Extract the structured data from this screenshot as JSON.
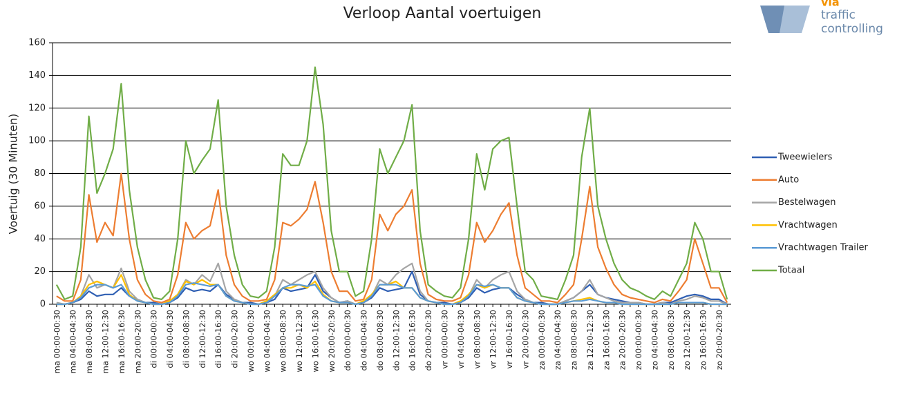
{
  "logo": {
    "line1": "via",
    "line2": "traffic",
    "line3": "controlling"
  },
  "chart_data": {
    "type": "line",
    "title": "Verloop Aantal voertuigen",
    "y_label": "Voertuig (30 Minuten)",
    "ylim": [
      0,
      160
    ],
    "yticks": [
      0,
      20,
      40,
      60,
      80,
      100,
      120,
      140,
      160
    ],
    "grid": true,
    "legend": "right",
    "categories": [
      "ma 00:00-00:30",
      null,
      "ma 04:00-04:30",
      null,
      "ma 08:00-08:30",
      null,
      "ma 12:00-12:30",
      null,
      "ma 16:00-16:30",
      null,
      "ma 20:00-20:30",
      null,
      "di 00:00-00:30",
      null,
      "di 04:00-04:30",
      null,
      "di 08:00-08:30",
      null,
      "di 12:00-12:30",
      null,
      "di 16:00-16:30",
      null,
      "di 20:00-20:30",
      null,
      "wo 00:00-00:30",
      null,
      "wo 04:00-04:30",
      null,
      "wo 08:00-08:30",
      null,
      "wo 12:00-12:30",
      null,
      "wo 16:00-16:30",
      null,
      "wo 20:00-20:30",
      null,
      "do 00:00-00:30",
      null,
      "do 04:00-04:30",
      null,
      "do 08:00-08:30",
      null,
      "do 12:00-12:30",
      null,
      "do 16:00-16:30",
      null,
      "do 20:00-20:30",
      null,
      "vr 00:00-00:30",
      null,
      "vr 04:00-04:30",
      null,
      "vr 08:00-08:30",
      null,
      "vr 12:00-12:30",
      null,
      "vr 16:00-16:30",
      null,
      "vr 20:00-20:30",
      null,
      "za 00:00-00:30",
      null,
      "za 04:00-04:30",
      null,
      "za 08:00-08:30",
      null,
      "za 12:00-12:30",
      null,
      "za 16:00-16:30",
      null,
      "za 20:00-20:30",
      null,
      "zo 00:00-00:30",
      null,
      "zo 04:00-04:30",
      null,
      "zo 08:00-08:30",
      null,
      "zo 12:00-12:30",
      null,
      "zo 16:00-16:30",
      null,
      "zo 20:00-20:30",
      null
    ],
    "series": [
      {
        "name": "Tweewielers",
        "color": "#2f5fb3",
        "values": [
          0,
          0,
          1,
          3,
          8,
          5,
          6,
          6,
          10,
          5,
          3,
          1,
          1,
          0,
          1,
          4,
          10,
          8,
          9,
          8,
          12,
          6,
          3,
          1,
          1,
          0,
          1,
          3,
          10,
          8,
          9,
          10,
          18,
          8,
          4,
          1,
          2,
          0,
          1,
          4,
          10,
          8,
          9,
          10,
          20,
          6,
          2,
          1,
          1,
          0,
          1,
          4,
          10,
          7,
          9,
          10,
          10,
          6,
          3,
          1,
          1,
          0,
          0,
          2,
          4,
          8,
          12,
          6,
          4,
          3,
          2,
          1,
          1,
          0,
          0,
          1,
          1,
          3,
          5,
          6,
          5,
          3,
          3,
          0
        ]
      },
      {
        "name": "Auto",
        "color": "#ed7d31",
        "values": [
          5,
          2,
          2,
          15,
          67,
          38,
          50,
          42,
          80,
          40,
          15,
          6,
          2,
          1,
          3,
          18,
          50,
          40,
          45,
          48,
          70,
          30,
          12,
          5,
          2,
          2,
          3,
          15,
          50,
          48,
          52,
          58,
          75,
          50,
          20,
          8,
          8,
          2,
          3,
          15,
          55,
          45,
          55,
          60,
          70,
          25,
          6,
          3,
          2,
          2,
          4,
          18,
          50,
          38,
          45,
          55,
          62,
          30,
          10,
          6,
          2,
          2,
          1,
          6,
          12,
          40,
          72,
          35,
          22,
          12,
          6,
          4,
          3,
          2,
          1,
          3,
          2,
          8,
          15,
          40,
          25,
          10,
          10,
          1
        ]
      },
      {
        "name": "Bestelwagen",
        "color": "#a5a5a5",
        "values": [
          1,
          0,
          1,
          5,
          18,
          10,
          12,
          10,
          22,
          8,
          3,
          1,
          0,
          0,
          1,
          6,
          15,
          12,
          18,
          14,
          25,
          8,
          3,
          1,
          0,
          0,
          1,
          5,
          15,
          12,
          15,
          18,
          20,
          10,
          4,
          1,
          2,
          0,
          1,
          5,
          15,
          12,
          18,
          22,
          25,
          8,
          2,
          1,
          0,
          0,
          1,
          5,
          15,
          10,
          15,
          18,
          20,
          8,
          3,
          1,
          0,
          0,
          0,
          2,
          4,
          8,
          15,
          6,
          4,
          2,
          1,
          1,
          1,
          0,
          0,
          1,
          0,
          2,
          3,
          5,
          4,
          2,
          2,
          0
        ]
      },
      {
        "name": "Vrachtwagen",
        "color": "#ffc000",
        "values": [
          0,
          0,
          1,
          5,
          12,
          14,
          12,
          10,
          18,
          6,
          2,
          1,
          0,
          0,
          2,
          6,
          14,
          12,
          15,
          12,
          12,
          5,
          2,
          1,
          0,
          0,
          2,
          6,
          10,
          10,
          12,
          10,
          14,
          6,
          2,
          1,
          1,
          0,
          2,
          6,
          12,
          12,
          14,
          10,
          10,
          4,
          2,
          1,
          0,
          0,
          2,
          6,
          12,
          10,
          12,
          10,
          10,
          4,
          2,
          1,
          0,
          0,
          0,
          1,
          2,
          3,
          4,
          2,
          1,
          1,
          0,
          0,
          0,
          0,
          0,
          0,
          0,
          1,
          1,
          1,
          1,
          0,
          0,
          0
        ]
      },
      {
        "name": "Vrachtwagen Trailer",
        "color": "#5b9bd5",
        "values": [
          0,
          0,
          1,
          4,
          10,
          12,
          12,
          10,
          12,
          5,
          2,
          1,
          0,
          0,
          1,
          5,
          12,
          13,
          12,
          11,
          12,
          5,
          2,
          1,
          0,
          0,
          1,
          5,
          10,
          12,
          12,
          11,
          12,
          5,
          2,
          1,
          1,
          0,
          1,
          5,
          12,
          12,
          12,
          10,
          10,
          4,
          2,
          1,
          0,
          0,
          1,
          5,
          12,
          11,
          12,
          10,
          10,
          4,
          2,
          1,
          0,
          0,
          0,
          1,
          2,
          2,
          3,
          2,
          1,
          1,
          0,
          0,
          0,
          0,
          0,
          0,
          0,
          1,
          1,
          1,
          1,
          0,
          0,
          0
        ]
      },
      {
        "name": "Totaal",
        "color": "#70ad47",
        "values": [
          12,
          3,
          5,
          35,
          115,
          68,
          80,
          95,
          135,
          70,
          35,
          15,
          4,
          3,
          8,
          40,
          100,
          80,
          88,
          95,
          125,
          60,
          30,
          12,
          5,
          4,
          8,
          35,
          92,
          85,
          85,
          100,
          145,
          110,
          45,
          20,
          20,
          5,
          8,
          40,
          95,
          80,
          90,
          100,
          122,
          45,
          12,
          8,
          5,
          4,
          10,
          40,
          92,
          70,
          95,
          100,
          102,
          60,
          20,
          15,
          5,
          4,
          3,
          15,
          30,
          90,
          120,
          60,
          40,
          25,
          15,
          10,
          8,
          5,
          3,
          8,
          5,
          15,
          25,
          50,
          40,
          20,
          20,
          3
        ]
      }
    ]
  }
}
